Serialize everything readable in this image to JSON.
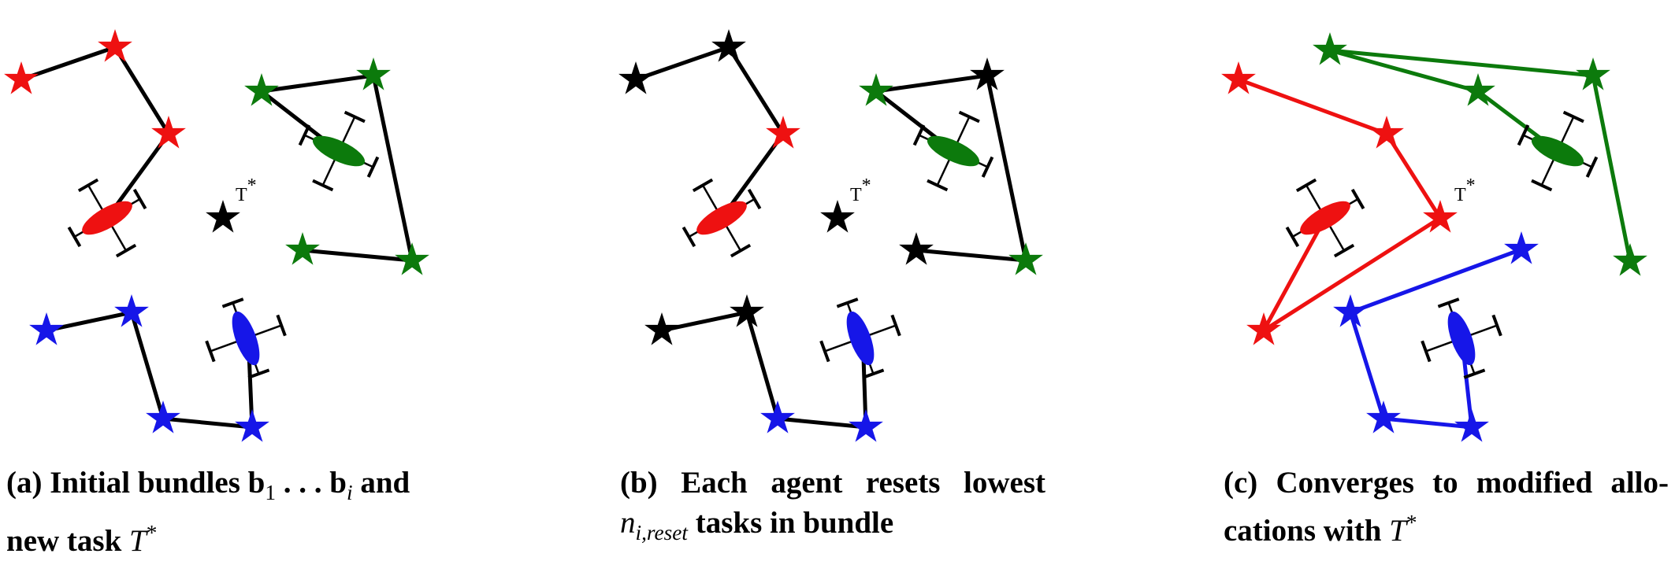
{
  "colors": {
    "agent_red": "#ee1111",
    "agent_green": "#0c7a0c",
    "agent_blue": "#1616e8",
    "reset_task": "#000000",
    "path_line": "#000000"
  },
  "task_label": {
    "symbol": "T",
    "superscript": "*"
  },
  "panels": [
    {
      "id": "a",
      "caption": {
        "prefix": "(a) Initial bundles ",
        "b1": "b",
        "b1_sub": "1",
        "dots": " . . . ",
        "bi": "b",
        "bi_sub": "i",
        "suffix": " and",
        "line2": "new task ",
        "T": "T",
        "T_sup": "*"
      }
    },
    {
      "id": "b",
      "caption": {
        "line1": "(b) Each agent resets lowest",
        "n": "n",
        "n_sub": "i,reset",
        "line2_suffix": " tasks in bundle"
      }
    },
    {
      "id": "c",
      "caption": {
        "line1": "(c) Converges to modified allo-",
        "line2": "cations with ",
        "T": "T",
        "T_sup": "*"
      }
    }
  ]
}
